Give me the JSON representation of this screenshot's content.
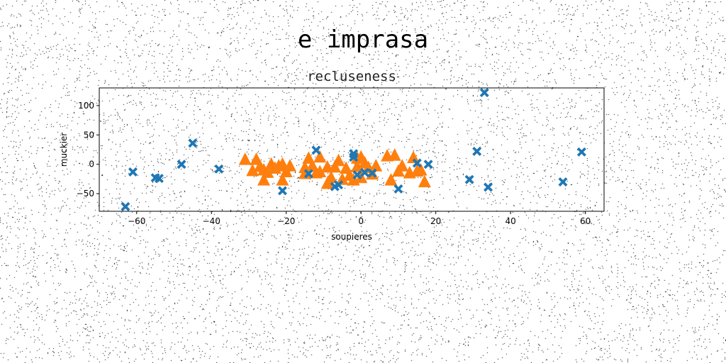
{
  "figure": {
    "suptitle": "e imprasa"
  },
  "chart_data": {
    "type": "scatter",
    "title": "recluseness",
    "xlabel": "soupieres",
    "ylabel": "muckier",
    "xlim": [
      -70,
      65
    ],
    "ylim": [
      -80,
      130
    ],
    "xticks": [
      -60,
      -40,
      -20,
      0,
      20,
      40,
      60
    ],
    "yticks": [
      -50,
      0,
      50,
      100
    ],
    "grid": false,
    "series": [
      {
        "marker": "x",
        "color": "#1f77b4",
        "points": [
          [
            -63,
            -72
          ],
          [
            -61,
            -13
          ],
          [
            -55,
            -23
          ],
          [
            -54,
            -24
          ],
          [
            -48,
            0
          ],
          [
            -45,
            36
          ],
          [
            -38,
            -8
          ],
          [
            -21,
            -45
          ],
          [
            -14,
            -16
          ],
          [
            -12,
            24
          ],
          [
            -7,
            -38
          ],
          [
            -6,
            -35
          ],
          [
            -2,
            18
          ],
          [
            -2,
            12
          ],
          [
            -1,
            -18
          ],
          [
            1,
            -14
          ],
          [
            3,
            -15
          ],
          [
            10,
            -42
          ],
          [
            15,
            2
          ],
          [
            18,
            0
          ],
          [
            29,
            -26
          ],
          [
            31,
            22
          ],
          [
            33,
            122
          ],
          [
            34,
            -39
          ],
          [
            54,
            -30
          ],
          [
            59,
            21
          ]
        ]
      },
      {
        "marker": "^",
        "color": "#ff7f0e",
        "points": [
          [
            -31,
            8
          ],
          [
            -29,
            -11
          ],
          [
            -28,
            8
          ],
          [
            -27,
            -4
          ],
          [
            -26,
            -10
          ],
          [
            -26,
            -27
          ],
          [
            -25,
            -14
          ],
          [
            -24,
            0
          ],
          [
            -23,
            -7
          ],
          [
            -22,
            -3
          ],
          [
            -21,
            0
          ],
          [
            -21,
            -27
          ],
          [
            -20,
            -13
          ],
          [
            -19,
            -3
          ],
          [
            -15,
            -6
          ],
          [
            -15,
            -16
          ],
          [
            -14,
            10
          ],
          [
            -13,
            -3
          ],
          [
            -12,
            -15
          ],
          [
            -11,
            12
          ],
          [
            -11,
            -13
          ],
          [
            -9,
            -5
          ],
          [
            -9,
            -33
          ],
          [
            -8,
            -23
          ],
          [
            -7,
            -5
          ],
          [
            -6,
            6
          ],
          [
            -5,
            -26
          ],
          [
            -4,
            -7
          ],
          [
            -3,
            -19
          ],
          [
            -2,
            -27
          ],
          [
            -1,
            10
          ],
          [
            -1,
            -4
          ],
          [
            0,
            12
          ],
          [
            0,
            -23
          ],
          [
            1,
            2
          ],
          [
            2,
            -6
          ],
          [
            3,
            -17
          ],
          [
            4,
            -3
          ],
          [
            7,
            14
          ],
          [
            8,
            -27
          ],
          [
            9,
            15
          ],
          [
            10,
            -12
          ],
          [
            11,
            -3
          ],
          [
            13,
            -15
          ],
          [
            14,
            11
          ],
          [
            15,
            -12
          ],
          [
            16,
            -10
          ],
          [
            17,
            -30
          ]
        ]
      }
    ]
  }
}
